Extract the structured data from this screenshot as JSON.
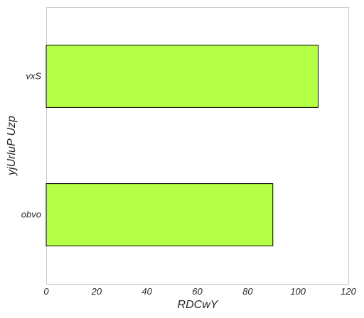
{
  "chart_data": {
    "type": "bar",
    "orientation": "horizontal",
    "categories": [
      "vxS",
      "obvo"
    ],
    "values": [
      108,
      90
    ],
    "xlabel": "RDCwY",
    "ylabel": "yjUrluP Uzp",
    "xlim": [
      0,
      120
    ],
    "xticks": [
      "0",
      "20",
      "40",
      "60",
      "80",
      "100",
      "120"
    ],
    "grid": false,
    "bar_color": "#b5ff47",
    "bar_edge_color": "#000000"
  }
}
